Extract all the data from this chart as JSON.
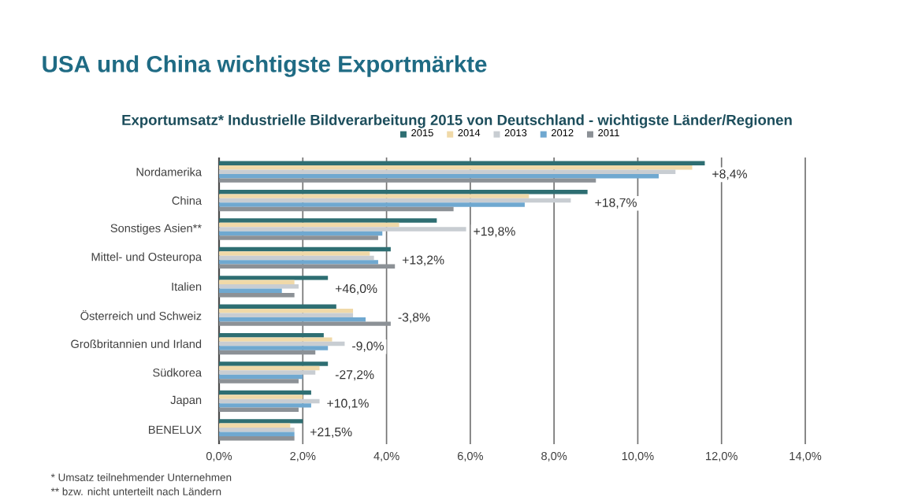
{
  "chart_data": {
    "type": "bar",
    "orientation": "horizontal",
    "title": "USA und China wichtigste Exportmärkte",
    "subtitle": "Exportumsatz* Industrielle Bildverarbeitung 2015 von Deutschland - wichtigste Länder/Regionen",
    "categories": [
      "Nordamerika",
      "China",
      "Sonstiges Asien**",
      "Mittel- und Osteuropa",
      "Italien",
      "Österreich und Schweiz",
      "Großbritannien und Irland",
      "Südkorea",
      "Japan",
      "BENELUX"
    ],
    "series": [
      {
        "name": "2015",
        "color": "#2e6e72",
        "values": [
          11.6,
          8.8,
          5.2,
          4.1,
          2.6,
          2.8,
          2.5,
          2.6,
          2.2,
          2.0
        ]
      },
      {
        "name": "2014",
        "color": "#f0d9a8",
        "values": [
          11.3,
          7.4,
          4.3,
          3.6,
          1.8,
          3.2,
          2.7,
          2.4,
          2.0,
          1.7
        ]
      },
      {
        "name": "2013",
        "color": "#c8cdd2",
        "values": [
          10.9,
          8.4,
          5.9,
          3.7,
          1.9,
          3.2,
          3.0,
          2.3,
          2.4,
          1.8
        ]
      },
      {
        "name": "2012",
        "color": "#6fa8d0",
        "values": [
          10.5,
          7.3,
          3.9,
          3.8,
          1.5,
          3.5,
          2.6,
          2.0,
          2.2,
          1.8
        ]
      },
      {
        "name": "2011",
        "color": "#8c9196",
        "values": [
          9.0,
          5.6,
          3.8,
          4.2,
          1.8,
          4.1,
          2.3,
          1.9,
          1.9,
          1.8
        ]
      }
    ],
    "xlim": [
      0,
      14
    ],
    "xticks": [
      {
        "value": 0,
        "label": "0,0%"
      },
      {
        "value": 2,
        "label": "2,0%"
      },
      {
        "value": 4,
        "label": "4,0%"
      },
      {
        "value": 6,
        "label": "6,0%"
      },
      {
        "value": 8,
        "label": "8,0%"
      },
      {
        "value": 10,
        "label": "10,0%"
      },
      {
        "value": 12,
        "label": "12,0%"
      },
      {
        "value": 14,
        "label": "14,0%"
      }
    ],
    "grid": "x",
    "legend": "top",
    "annotations": [
      {
        "text": "+8,4%",
        "x": 11.6,
        "y": "Nordamerika"
      },
      {
        "text": "+18,7%",
        "x": 8.8,
        "y": "China"
      },
      {
        "text": "+19,8%",
        "x": 5.9,
        "y": "Sonstiges Asien**"
      },
      {
        "text": "+13,2%",
        "x": 4.2,
        "y": "Mittel- und Osteuropa"
      },
      {
        "text": "+46,0%",
        "x": 2.6,
        "y": "Italien"
      },
      {
        "text": "-3,8%",
        "x": 4.1,
        "y": "Österreich und Schweiz"
      },
      {
        "text": "-9,0%",
        "x": 3.0,
        "y": "Großbritannien und Irland"
      },
      {
        "text": "-27,2%",
        "x": 2.6,
        "y": "Südkorea"
      },
      {
        "text": "+10,1%",
        "x": 2.4,
        "y": "Japan"
      },
      {
        "text": "+21,5%",
        "x": 2.0,
        "y": "BENELUX"
      },
      "* Umsatz teilnehmender Unternehmen",
      "** bzw. nicht unterteilt nach Ländern"
    ]
  }
}
